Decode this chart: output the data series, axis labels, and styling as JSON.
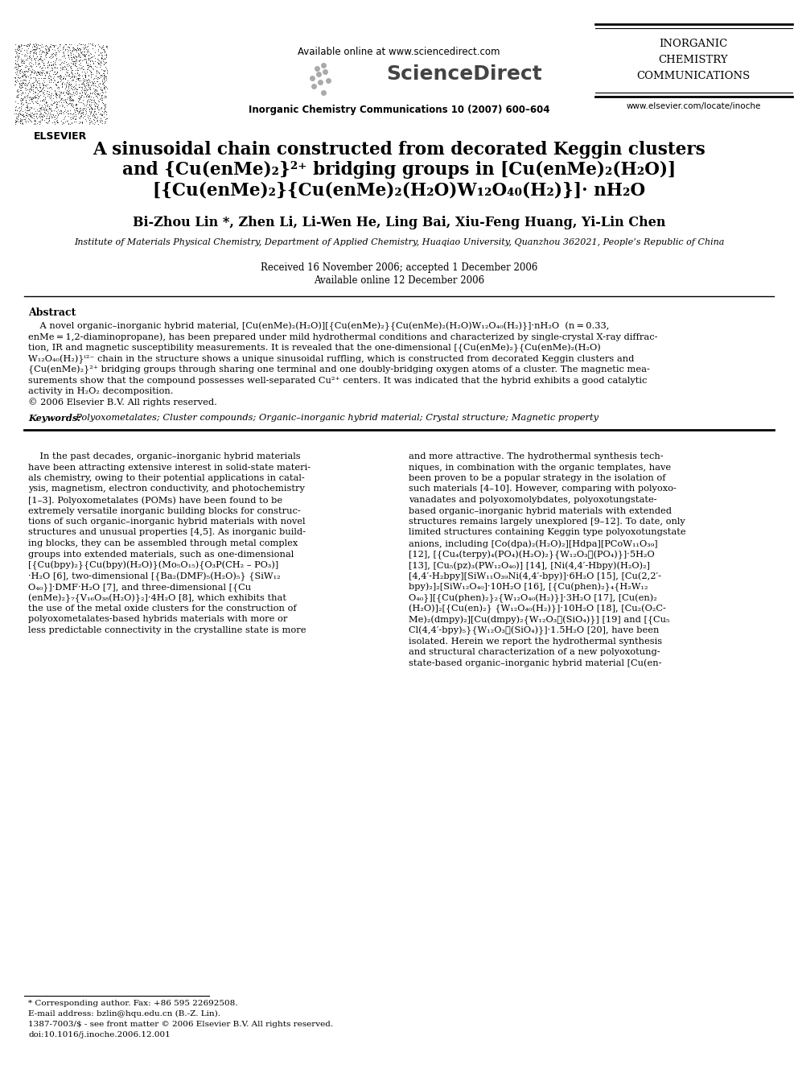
{
  "bg_color": "#ffffff",
  "header": {
    "available_online": "Available online at www.sciencedirect.com",
    "sciencedirect": "ScienceDirect",
    "journal_info": "Inorganic Chemistry Communications 10 (2007) 600–604",
    "journal_name_line1": "INORGANIC",
    "journal_name_line2": "CHEMISTRY",
    "journal_name_line3": "COMMUNICATIONS",
    "website": "www.elsevier.com/locate/inoche",
    "elsevier": "ELSEVIER"
  },
  "title_line1": "A sinusoidal chain constructed from decorated Keggin clusters",
  "title_line2": "and {Cu(enMe)₂}²⁺ bridging groups in [Cu(enMe)₂(H₂O)]",
  "title_line3": "[{Cu(enMe)₂}{Cu(enMe)₂(H₂O)W₁₂O₄₀(H₂)}]· nH₂O",
  "authors": "Bi-Zhou Lin *, Zhen Li, Li-Wen He, Ling Bai, Xiu-Feng Huang, Yi-Lin Chen",
  "affiliation": "Institute of Materials Physical Chemistry, Department of Applied Chemistry, Huaqiao University, Quanzhou 362021, People’s Republic of China",
  "received": "Received 16 November 2006; accepted 1 December 2006",
  "available_online_date": "Available online 12 December 2006",
  "abstract_title": "Abstract",
  "keywords_label": "Keywords:",
  "keywords_text": "  Polyoxometalates; Cluster compounds; Organic–inorganic hybrid material; Crystal structure; Magnetic property",
  "footnote1": "* Corresponding author. Fax: +86 595 22692508.",
  "footnote2": "E-mail address: bzlin@hqu.edu.cn (B.-Z. Lin).",
  "footnote3": "1387-7003/$ - see front matter © 2006 Elsevier B.V. All rights reserved.",
  "footnote4": "doi:10.1016/j.inoche.2006.12.001",
  "abstract_lines": [
    "    A novel organic–inorganic hybrid material, [Cu(enMe)₂(H₂O)][{Cu(enMe)₂}{Cu(enMe)₂(H₂O)W₁₂O₄₀(H₂)}]·nH₂O  (n = 0.33,",
    "enMe = 1,2-diaminopropane), has been prepared under mild hydrothermal conditions and characterized by single-crystal X-ray diffrac-",
    "tion, IR and magnetic susceptibility measurements. It is revealed that the one-dimensional [{Cu(enMe)₂}{Cu(enMe)₂(H₂O)",
    "W₁₂O₄₀(H₂)}ⁱ²⁻ chain in the structure shows a unique sinusoidal ruffling, which is constructed from decorated Keggin clusters and",
    "{Cu(enMe)₂}²⁺ bridging groups through sharing one terminal and one doubly-bridging oxygen atoms of a cluster. The magnetic mea-",
    "surements show that the compound possesses well-separated Cu²⁺ centers. It was indicated that the hybrid exhibits a good catalytic",
    "activity in H₂O₂ decomposition.",
    "© 2006 Elsevier B.V. All rights reserved."
  ],
  "col1_lines": [
    "    In the past decades, organic–inorganic hybrid materials",
    "have been attracting extensive interest in solid-state materi-",
    "als chemistry, owing to their potential applications in catal-",
    "ysis, magnetism, electron conductivity, and photochemistry",
    "[1–3]. Polyoxometalates (POMs) have been found to be",
    "extremely versatile inorganic building blocks for construc-",
    "tions of such organic–inorganic hybrid materials with novel",
    "structures and unusual properties [4,5]. As inorganic build-",
    "ing blocks, they can be assembled through metal complex",
    "groups into extended materials, such as one-dimensional",
    "[{Cu(bpy)₂}{Cu(bpy)(H₂O)}(Mo₅O₁₅){O₃P(CH₂ – PO₃)]",
    "·H₂O [6], two-dimensional [{Ba₂(DMF)₅(H₂O)₅} {SiW₁₂",
    "O₄₀}]·DMF·H₂O [7], and three-dimensional [{Cu",
    "(enMe)₂}₇{V₁₆O₃₈(H₂O)}₂]·4H₂O [8], which exhibits that",
    "the use of the metal oxide clusters for the construction of",
    "polyoxometalates-based hybrids materials with more or",
    "less predictable connectivity in the crystalline state is more"
  ],
  "col2_lines": [
    "and more attractive. The hydrothermal synthesis tech-",
    "niques, in combination with the organic templates, have",
    "been proven to be a popular strategy in the isolation of",
    "such materials [4–10]. However, comparing with polyoxo-",
    "vanadates and polyoxomolybdates, polyoxotungstate-",
    "based organic–inorganic hybrid materials with extended",
    "structures remains largely unexplored [9–12]. To date, only",
    "limited structures containing Keggin type polyoxotungstate",
    "anions, including [Co(dpa)₂(H₂O)₂][Hdpa][PCoW₁₁O₃₉]",
    "[12], [{Cu₄(terpy)₄(PO₄)(H₂O)₂}{W₁₂O₃⁦(PO₄)}]·5H₂O",
    "[13], [Cu₅(pz)₃(PW₁₂O₄₀)] [14], [Ni(4,4′-Hbpy)(H₂O)₂]",
    "[4,4′-H₂bpy][SiW₁₁O₃₉Ni(4,4′-bpy)]·6H₂O [15], [Cu(2,2′-",
    "bpy)₂]₂[SiW₁₂O₄₀]·10H₂O [16], [{Cu(phen)₂}₄{H₂W₁₂",
    "O₄₀}][{Cu(phen)₂}₂{W₁₂O₄₀(H₂)}]·3H₂O [17], [Cu(en)₂",
    "(H₂O)]₂[{Cu(en)₂} {W₁₂O₄₀(H₂)}]·10H₂O [18], [Cu₂(O₂C-",
    "Me)₂(dmpy)₂][Cu(dmpy)₂{W₁₂O₃⁦(SiO₄)}] [19] and [{Cu₅",
    "Cl(4,4′-bpy)₅}{W₁₂O₃⁦(SiO₄)}]·1.5H₂O [20], have been",
    "isolated. Herein we report the hydrothermal synthesis",
    "and structural characterization of a new polyoxotung-",
    "state-based organic–inorganic hybrid material [Cu(en-"
  ]
}
